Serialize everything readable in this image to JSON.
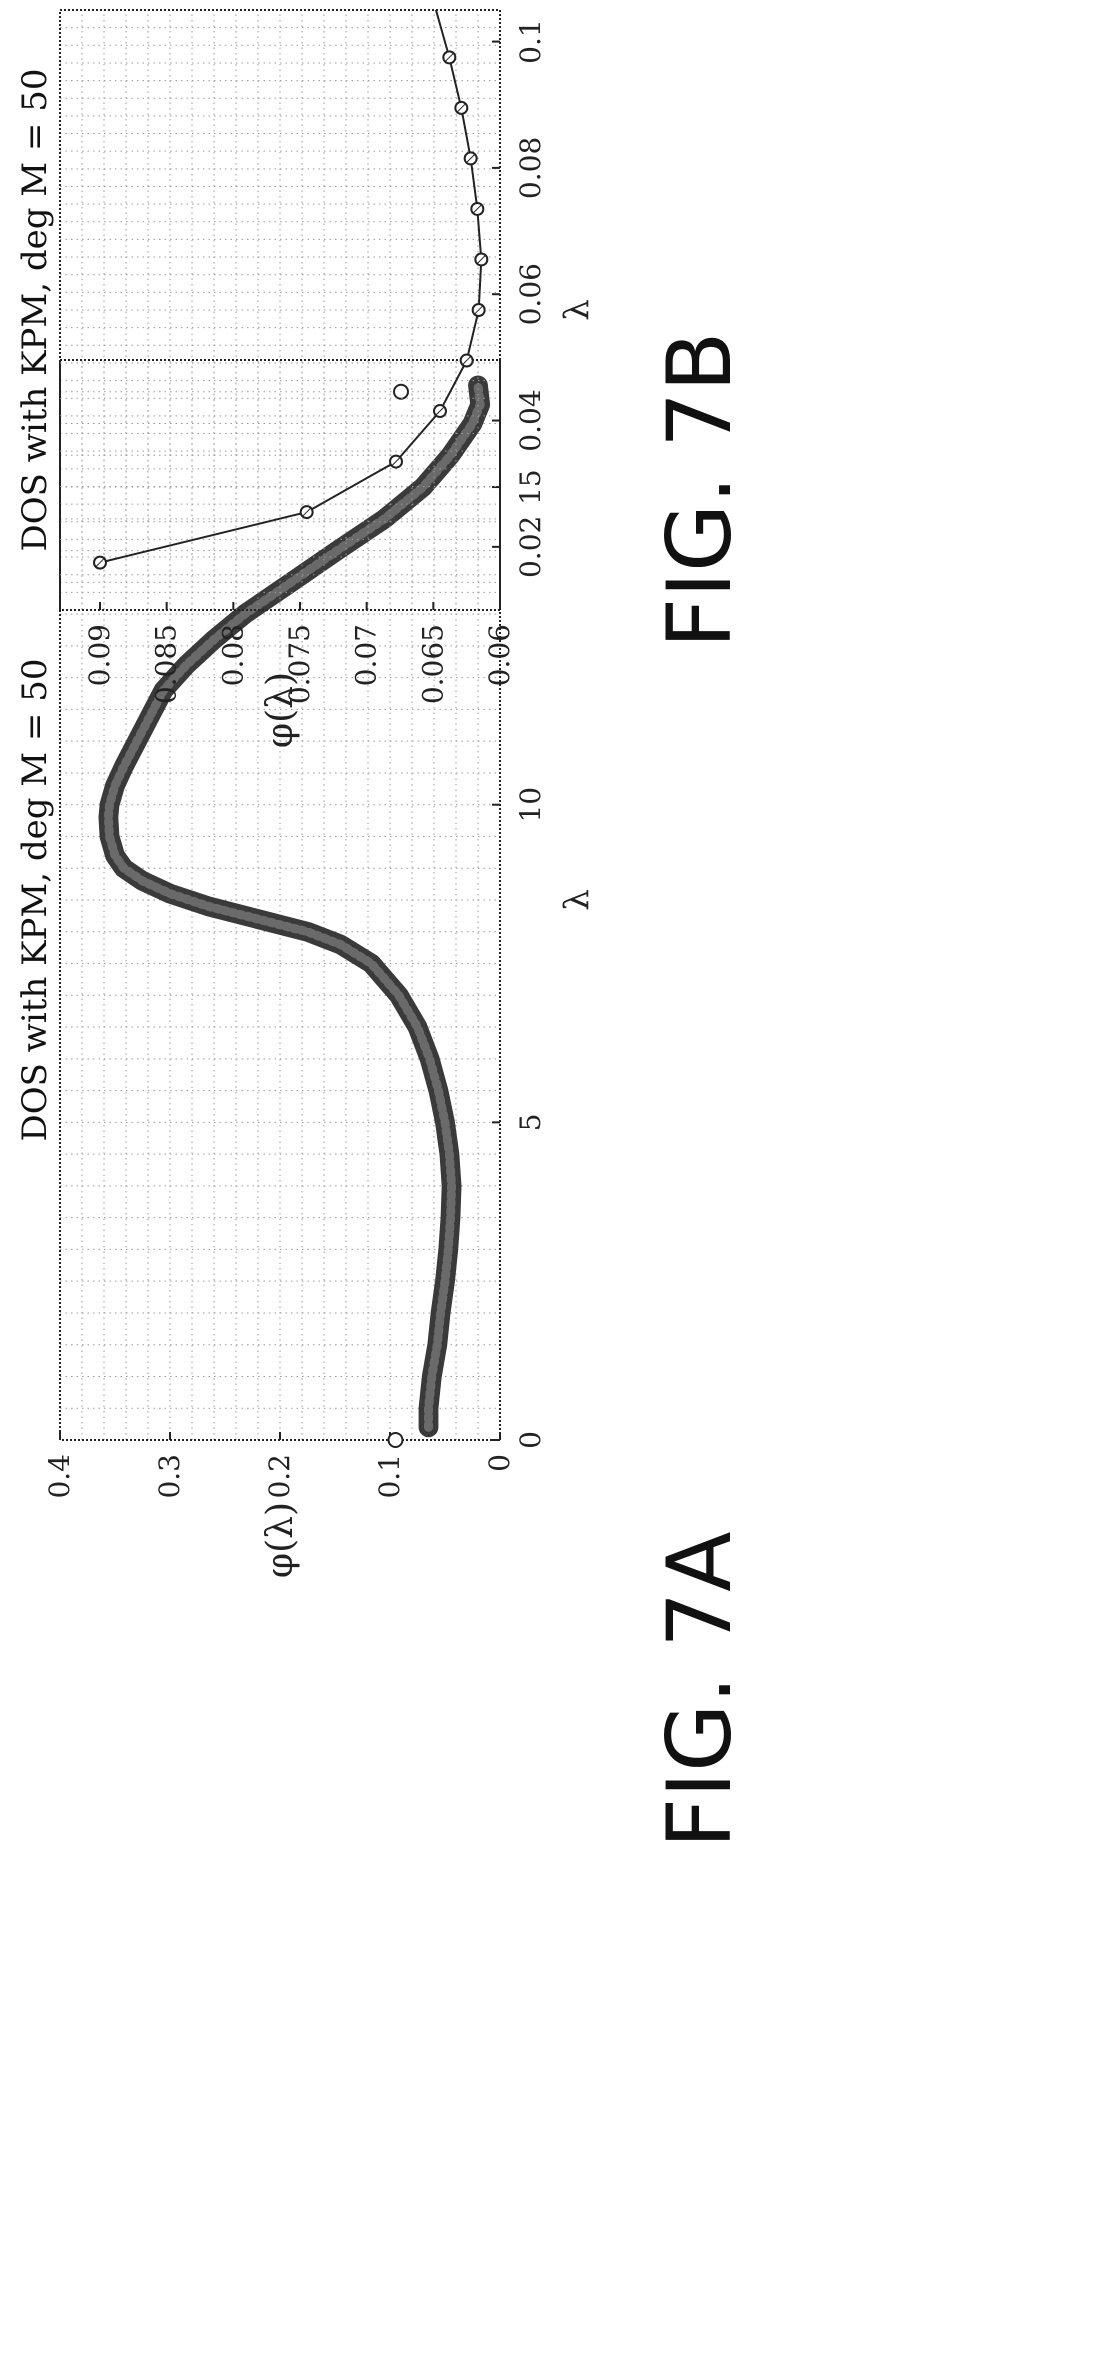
{
  "figures": [
    {
      "caption": "FIG. 7A"
    },
    {
      "caption": "FIG. 7B"
    }
  ],
  "chart_data": [
    {
      "type": "scatter",
      "title": "DOS with KPM, deg M = 50",
      "xlabel": "λ",
      "ylabel": "φ(λ)",
      "xlim": [
        0,
        17
      ],
      "ylim": [
        0,
        0.4
      ],
      "xticks": [
        "0",
        "5",
        "10",
        "15"
      ],
      "xtick_values": [
        0,
        5,
        10,
        15
      ],
      "yticks": [
        "0",
        "0.1",
        "0.2",
        "0.3",
        "0.4"
      ],
      "ytick_values": [
        0,
        0.1,
        0.2,
        0.3,
        0.4
      ],
      "grid": true,
      "x": [
        0.2,
        0.5,
        1.0,
        1.5,
        2.0,
        2.5,
        3.0,
        3.5,
        4.0,
        4.5,
        5.0,
        5.5,
        6.0,
        6.5,
        7.0,
        7.5,
        7.8,
        8.0,
        8.2,
        8.4,
        8.6,
        8.8,
        9.0,
        9.2,
        9.5,
        9.8,
        10.0,
        10.3,
        10.6,
        11.0,
        11.4,
        11.8,
        12.2,
        12.6,
        13.0,
        13.5,
        14.0,
        14.5,
        15.0,
        15.5,
        16.0,
        16.3,
        16.6
      ],
      "y": [
        0.065,
        0.065,
        0.062,
        0.057,
        0.054,
        0.05,
        0.047,
        0.045,
        0.044,
        0.046,
        0.05,
        0.056,
        0.064,
        0.075,
        0.092,
        0.117,
        0.145,
        0.175,
        0.22,
        0.265,
        0.3,
        0.325,
        0.342,
        0.35,
        0.355,
        0.356,
        0.355,
        0.35,
        0.342,
        0.33,
        0.318,
        0.306,
        0.285,
        0.26,
        0.232,
        0.19,
        0.148,
        0.105,
        0.07,
        0.045,
        0.025,
        0.018,
        0.02
      ],
      "isolated_points": {
        "x": [
          0.0,
          16.5
        ],
        "y": [
          0.095,
          0.09
        ]
      }
    },
    {
      "type": "line",
      "title": "DOS with KPM, deg M = 50",
      "xlabel": "λ",
      "ylabel": "φ(λ)",
      "xlim": [
        0.01,
        0.105
      ],
      "ylim": [
        0.06,
        0.093
      ],
      "xticks": [
        "0.02",
        "0.04",
        "0.06",
        "0.08",
        "0.1"
      ],
      "xtick_values": [
        0.02,
        0.04,
        0.06,
        0.08,
        0.1
      ],
      "yticks": [
        "0.06",
        "0.065",
        "0.07",
        "0.075",
        "0.08",
        "0.085",
        "0.09"
      ],
      "ytick_values": [
        0.06,
        0.065,
        0.07,
        0.075,
        0.08,
        0.085,
        0.09
      ],
      "grid": true,
      "x": [
        0.0175,
        0.0255,
        0.0335,
        0.0415,
        0.0495,
        0.0575,
        0.0655,
        0.0735,
        0.0815,
        0.0895,
        0.0975,
        0.105
      ],
      "y": [
        0.09,
        0.0745,
        0.0678,
        0.0645,
        0.0625,
        0.0616,
        0.0614,
        0.0617,
        0.0622,
        0.0629,
        0.0638,
        0.0648
      ],
      "markers": "circle"
    }
  ]
}
